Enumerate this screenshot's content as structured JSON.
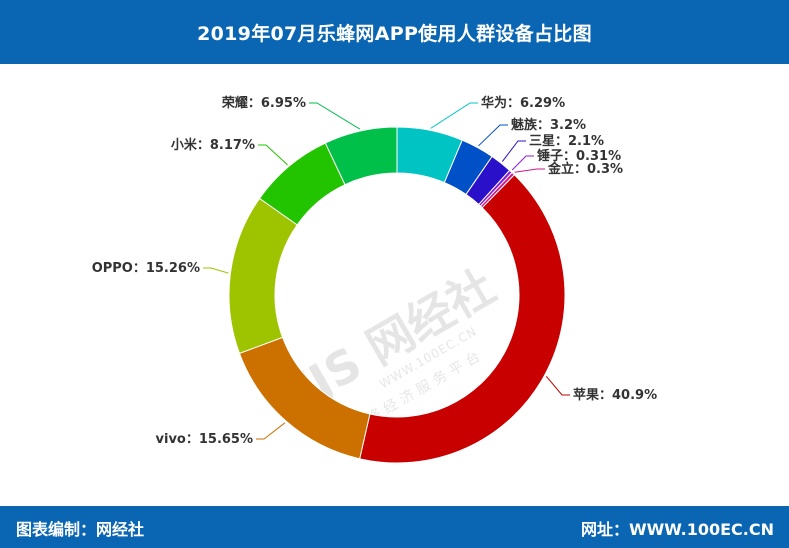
{
  "header": {
    "title": "2019年07月乐蜂网APP使用人群设备占比图"
  },
  "footer": {
    "left": "图表编制：网经社",
    "right": "网址：WWW.100EC.CN"
  },
  "watermark": {
    "logo": "WJS 网经社",
    "url": "WWW.100EC.CN",
    "slogan": "网络经济服务平台"
  },
  "chart_data": {
    "type": "pie",
    "style": "donut",
    "categories": [
      "华为",
      "魅族",
      "三星",
      "锤子",
      "金立",
      "苹果",
      "vivo",
      "OPPO",
      "小米",
      "荣耀"
    ],
    "values": [
      6.29,
      3.2,
      2.1,
      0.31,
      0.3,
      40.9,
      15.65,
      15.26,
      8.17,
      6.95
    ],
    "unit": "%",
    "colors": [
      "#00c4c4",
      "#0050c8",
      "#2a10c8",
      "#8a1ed4",
      "#d0148a",
      "#c80000",
      "#cc7000",
      "#9ec400",
      "#22c400",
      "#00c04a"
    ],
    "labels": [
      "华为：6.29%",
      "魅族：3.2%",
      "三星：2.1%",
      "锤子：0.31%",
      "金立：0.3%",
      "苹果：40.9%",
      "vivo：15.65%",
      "OPPO：15.26%",
      "小米：8.17%",
      "荣耀：6.95%"
    ],
    "legend": "none"
  }
}
